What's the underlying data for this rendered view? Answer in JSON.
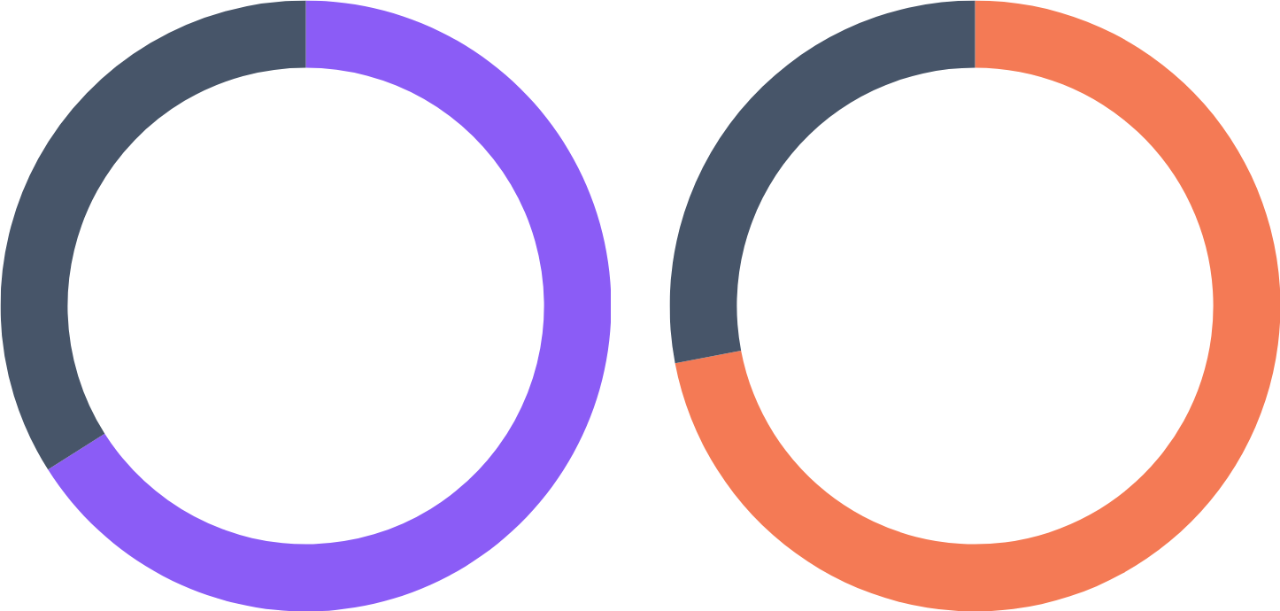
{
  "chart_data": [
    {
      "type": "donut",
      "categories": [
        null,
        null
      ],
      "values": [
        66,
        34
      ],
      "colors": [
        "#8b5cf6",
        "#475569"
      ]
    },
    {
      "type": "donut",
      "categories": [
        null,
        null
      ],
      "values": [
        72,
        28
      ],
      "colors": [
        "#f47a55",
        "#475569"
      ]
    }
  ]
}
